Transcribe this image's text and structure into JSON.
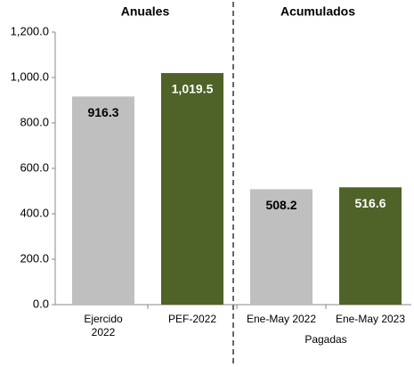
{
  "chart_data": {
    "type": "bar",
    "sections": [
      "Anuales",
      "Acumulados"
    ],
    "categories": [
      "Ejercido 2022",
      "PEF-2022",
      "Ene-May 2022",
      "Ene-May 2023"
    ],
    "group_label": "Pagadas",
    "values": [
      916.3,
      1019.5,
      508.2,
      516.6
    ],
    "value_labels": [
      "916.3",
      "1,019.5",
      "508.2",
      "516.6"
    ],
    "colors": [
      "#bfbfbf",
      "#4f6228",
      "#bfbfbf",
      "#4f6228"
    ],
    "label_colors": [
      "#000000",
      "#ffffff",
      "#000000",
      "#ffffff"
    ],
    "ylim": [
      0,
      1200
    ],
    "yticks": [
      {
        "value": 0,
        "label": "0.0"
      },
      {
        "value": 200,
        "label": "200.0"
      },
      {
        "value": 400,
        "label": "400.0"
      },
      {
        "value": 600,
        "label": "600.0"
      },
      {
        "value": 800,
        "label": "800.0"
      },
      {
        "value": 1000,
        "label": "1,000.0"
      },
      {
        "value": 1200,
        "label": "1,200.0"
      }
    ],
    "grid": false
  }
}
